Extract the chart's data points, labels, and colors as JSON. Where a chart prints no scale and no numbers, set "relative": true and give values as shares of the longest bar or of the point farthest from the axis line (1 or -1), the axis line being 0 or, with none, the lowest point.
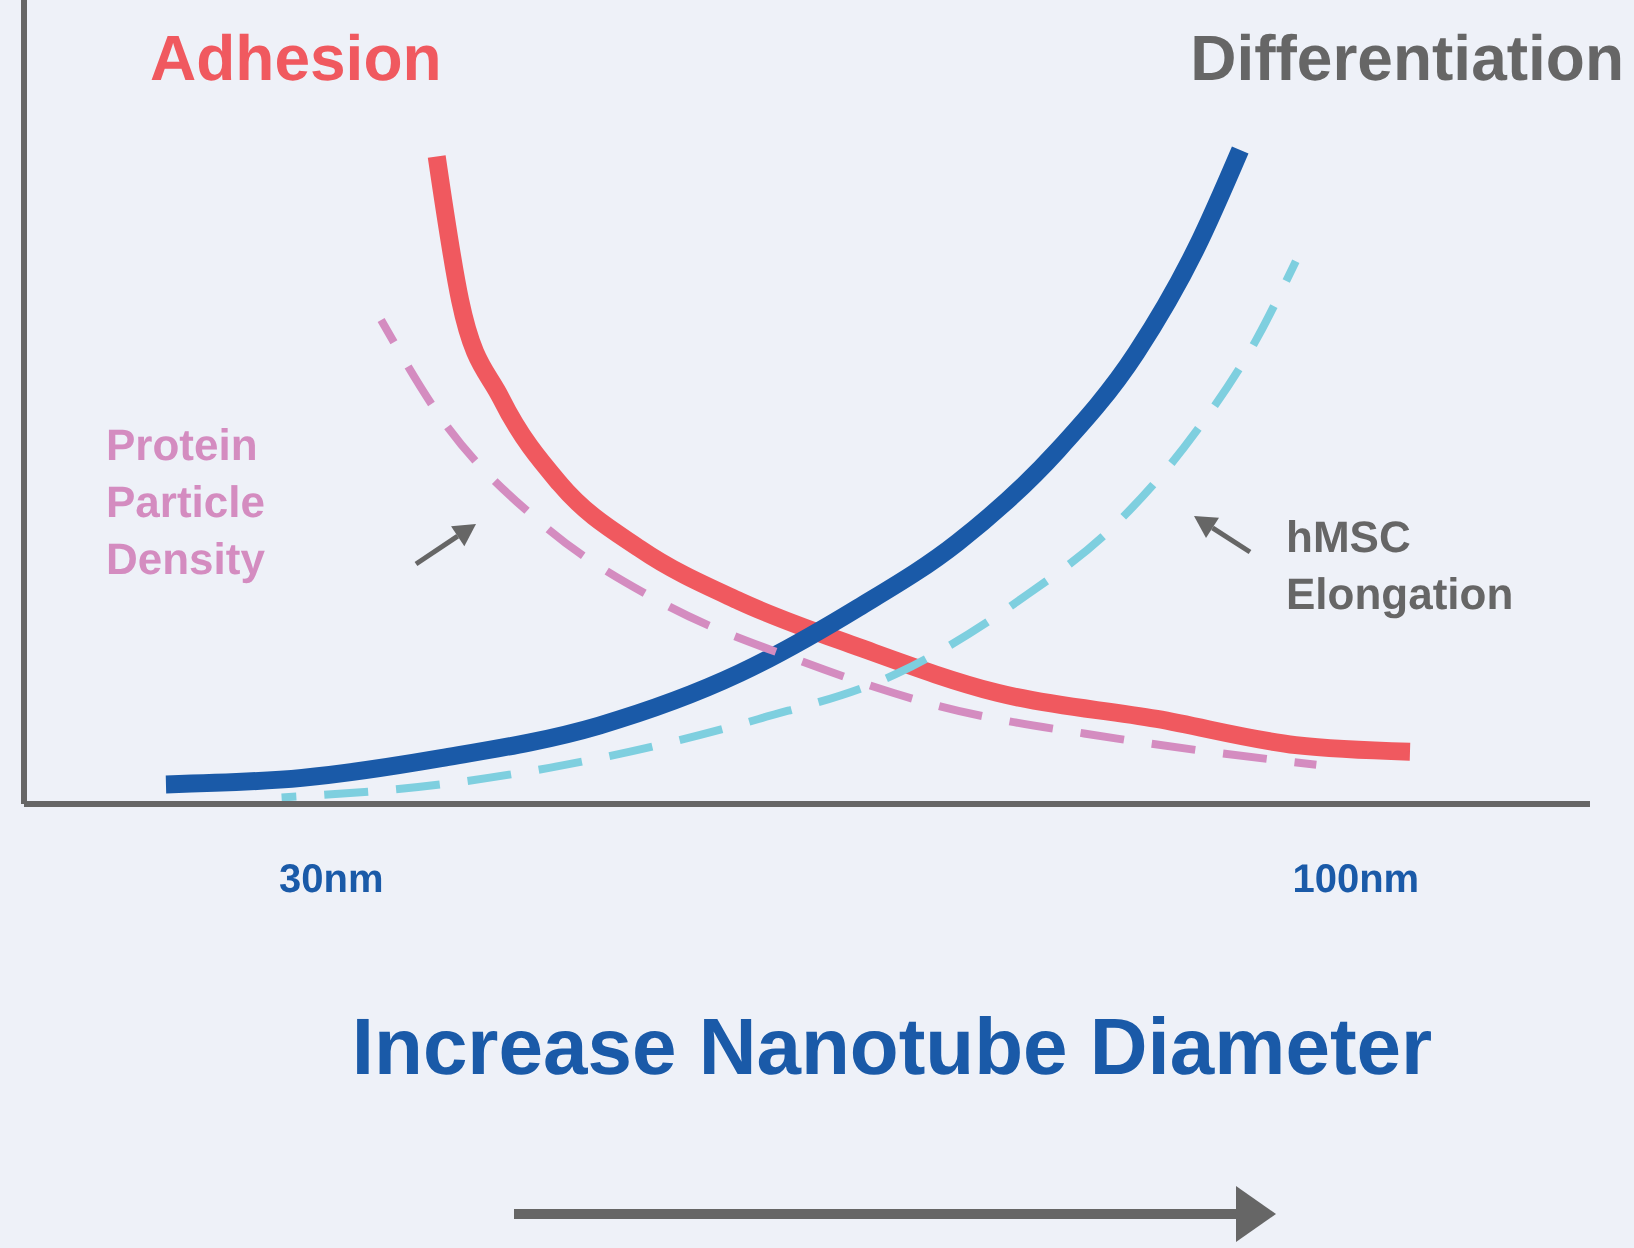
{
  "chart_data": {
    "type": "line",
    "relative": true,
    "xlabel": "Increase Nanotube Diameter",
    "xlim": [
      9,
      116
    ],
    "xticks": [
      {
        "value": 30,
        "label": "30nm"
      },
      {
        "value": 100,
        "label": "100nm"
      }
    ],
    "series": [
      {
        "name": "Adhesion",
        "color": "#f0595f",
        "line_style": "solid",
        "x": [
          37.2,
          38.8,
          41.6,
          45.6,
          51.1,
          57.9,
          66.0,
          75.5,
          86.4,
          95.9,
          103.7
        ],
        "values": [
          0.99,
          0.77,
          0.62,
          0.49,
          0.39,
          0.31,
          0.24,
          0.17,
          0.13,
          0.09,
          0.08
        ]
      },
      {
        "name": "Differentiation",
        "color": "#1a5aa8",
        "line_style": "solid",
        "x": [
          18.7,
          28.0,
          37.5,
          48.3,
          57.9,
          66.0,
          72.8,
          79.6,
          85.0,
          89.1,
          92.1
        ],
        "values": [
          0.03,
          0.04,
          0.07,
          0.12,
          0.2,
          0.3,
          0.4,
          0.54,
          0.69,
          0.85,
          1
        ]
      },
      {
        "name": "Protein Particle Density",
        "color": "#d48cc0",
        "line_style": "dashed",
        "x": [
          33.4,
          37.5,
          44.3,
          52.4,
          61.9,
          71.5,
          83.7,
          97.3
        ],
        "values": [
          0.74,
          0.59,
          0.43,
          0.31,
          0.22,
          0.15,
          0.1,
          0.06
        ]
      },
      {
        "name": "hMSC Elongation",
        "color": "#7ecfdf",
        "line_style": "dashed",
        "x": [
          26.6,
          37.5,
          48.3,
          59.2,
          68.7,
          76.9,
          83.7,
          89.1,
          93.2,
          95.9
        ],
        "values": [
          0.01,
          0.03,
          0.07,
          0.13,
          0.2,
          0.31,
          0.43,
          0.57,
          0.71,
          0.83
        ]
      }
    ]
  }
}
